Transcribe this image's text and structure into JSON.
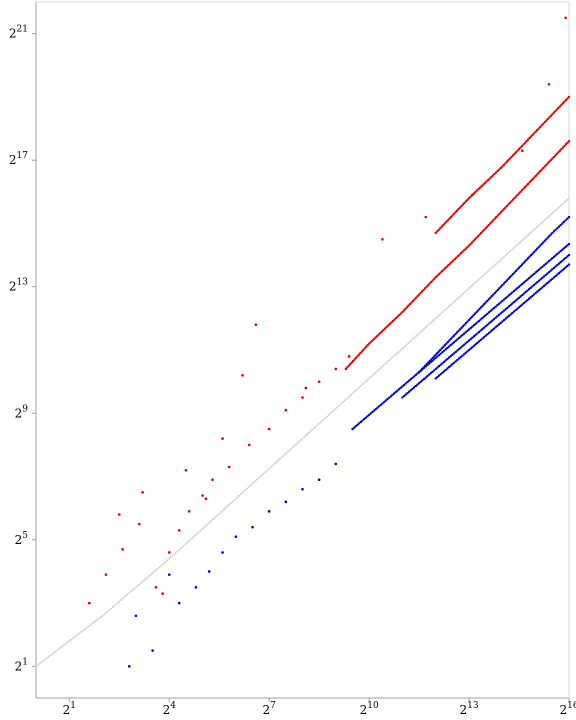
{
  "chart_data": {
    "type": "scatter",
    "title": "",
    "xlabel": "",
    "ylabel": "",
    "scale": "log2",
    "xlim_exp": [
      0,
      16
    ],
    "ylim_exp": [
      0,
      22
    ],
    "x_ticks": [
      {
        "base": "2",
        "exp": "1"
      },
      {
        "base": "2",
        "exp": "4"
      },
      {
        "base": "2",
        "exp": "7"
      },
      {
        "base": "2",
        "exp": "10"
      },
      {
        "base": "2",
        "exp": "13"
      },
      {
        "base": "2",
        "exp": "16"
      }
    ],
    "y_ticks": [
      {
        "base": "2",
        "exp": "1"
      },
      {
        "base": "2",
        "exp": "5"
      },
      {
        "base": "2",
        "exp": "9"
      },
      {
        "base": "2",
        "exp": "13"
      },
      {
        "base": "2",
        "exp": "17"
      },
      {
        "base": "2",
        "exp": "21"
      }
    ],
    "grid": false,
    "colors": {
      "red": "#e00000",
      "gray": "#c8c8c8",
      "blue": "#0000d0"
    },
    "series": [
      {
        "color": "red",
        "style": "dense",
        "x_exp": [
          9.3,
          10,
          11,
          12,
          13,
          14,
          15,
          16
        ],
        "y_exp": [
          10.4,
          11.2,
          12.2,
          13.3,
          14.3,
          15.4,
          16.5,
          17.6
        ]
      },
      {
        "color": "red",
        "style": "dense",
        "x_exp": [
          12,
          13,
          14,
          15,
          16
        ],
        "y_exp": [
          14.7,
          15.8,
          16.8,
          17.9,
          19.0
        ]
      },
      {
        "color": "red",
        "style": "sparse",
        "x_exp": [
          1.6,
          2.1,
          2.6,
          3.1,
          3.6,
          4.0,
          4.3,
          4.6,
          5.0,
          5.3,
          5.8,
          6.4,
          7.0,
          7.5,
          8.0,
          8.5,
          9.0,
          9.4
        ],
        "y_exp": [
          3.0,
          3.9,
          4.7,
          5.5,
          3.5,
          4.6,
          5.3,
          5.9,
          6.4,
          6.9,
          7.3,
          8.0,
          8.5,
          9.1,
          9.5,
          10.0,
          10.4,
          10.8
        ]
      },
      {
        "color": "red",
        "style": "sparse",
        "x_exp": [
          2.5,
          3.2,
          3.8,
          4.5,
          5.1,
          5.6,
          6.2,
          6.6,
          8.1,
          10.4,
          11.7,
          13.1,
          14.6,
          15.4,
          15.9
        ],
        "y_exp": [
          5.8,
          6.5,
          3.3,
          7.2,
          6.3,
          8.2,
          10.2,
          11.8,
          9.8,
          14.5,
          15.2,
          15.9,
          17.3,
          19.4,
          21.5
        ]
      },
      {
        "color": "gray",
        "style": "dense",
        "x_exp": [
          0,
          2,
          4,
          6,
          8,
          10,
          12,
          14,
          16
        ],
        "y_exp": [
          1.0,
          2.6,
          4.4,
          6.3,
          8.2,
          10.1,
          12.0,
          13.9,
          15.8
        ]
      },
      {
        "color": "blue",
        "style": "dense",
        "x_exp": [
          9.5,
          10.5,
          11.5,
          12.5,
          13.5,
          14.5,
          15.5,
          16
        ],
        "y_exp": [
          8.5,
          9.4,
          10.3,
          11.2,
          12.1,
          13.0,
          13.9,
          14.35
        ]
      },
      {
        "color": "blue",
        "style": "dense",
        "x_exp": [
          11,
          12,
          13,
          14,
          15,
          16
        ],
        "y_exp": [
          9.5,
          10.4,
          11.3,
          12.2,
          13.1,
          14.0
        ]
      },
      {
        "color": "blue",
        "style": "dense",
        "x_exp": [
          12,
          13,
          14,
          15,
          16
        ],
        "y_exp": [
          10.1,
          11.0,
          11.9,
          12.8,
          13.7
        ]
      },
      {
        "color": "blue",
        "style": "dense",
        "x_exp": [
          11.5,
          12.5,
          13.5,
          14.5,
          15.5,
          16
        ],
        "y_exp": [
          10.3,
          11.4,
          12.5,
          13.6,
          14.7,
          15.2
        ]
      },
      {
        "color": "blue",
        "style": "sparse",
        "x_exp": [
          2.8,
          3.0,
          3.5,
          4.0,
          4.3,
          4.8,
          5.2,
          5.6,
          6.0,
          6.5,
          7.0,
          7.5,
          8.0,
          8.5,
          9.0
        ],
        "y_exp": [
          1.0,
          2.6,
          1.5,
          3.9,
          3.0,
          3.5,
          4.0,
          4.6,
          5.1,
          5.4,
          5.9,
          6.2,
          6.6,
          6.9,
          7.4
        ]
      }
    ]
  }
}
